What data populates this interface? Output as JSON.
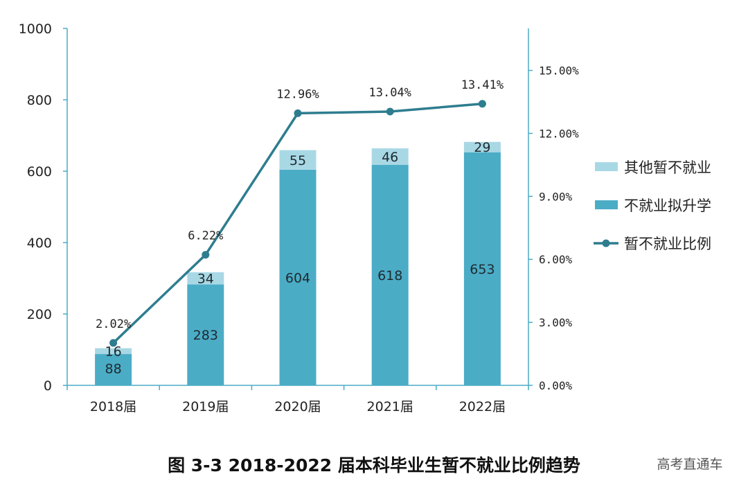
{
  "chart_data": {
    "type": "bar",
    "categories": [
      "2018届",
      "2019届",
      "2020届",
      "2021届",
      "2022届"
    ],
    "series": [
      {
        "name": "不就业拟升学",
        "kind": "stacked-bar",
        "values": [
          88,
          283,
          604,
          618,
          653
        ],
        "color": "#4BACC6"
      },
      {
        "name": "其他暂不就业",
        "kind": "stacked-bar",
        "values": [
          16,
          34,
          55,
          46,
          29
        ],
        "color": "#A9D8E5"
      },
      {
        "name": "暂不就业比例",
        "kind": "line",
        "axis": "right",
        "values": [
          2.02,
          6.22,
          12.96,
          13.04,
          13.41
        ],
        "labels": [
          "2.02%",
          "6.22%",
          "12.96%",
          "13.04%",
          "13.41%"
        ],
        "color": "#2E7D8F"
      }
    ],
    "left_axis": {
      "ylim": [
        0,
        1000
      ],
      "ticks": [
        "0",
        "200",
        "400",
        "600",
        "800",
        "1000"
      ]
    },
    "right_axis": {
      "ylim": [
        0,
        17
      ],
      "ticks": [
        "0.00%",
        "3.00%",
        "6.00%",
        "9.00%",
        "12.00%",
        "15.00%"
      ],
      "tick_values": [
        0,
        3,
        6,
        9,
        12,
        15
      ]
    },
    "legend": {
      "placement": "right",
      "entries": [
        "其他暂不就业",
        "不就业拟升学",
        "暂不就业比例"
      ]
    },
    "title": "图 3-3   2018-2022 届本科毕业生暂不就业比例趋势",
    "grid": false
  },
  "watermark": "高考直通车",
  "colors": {
    "axis": "#4BACC6",
    "text": "#222222"
  }
}
